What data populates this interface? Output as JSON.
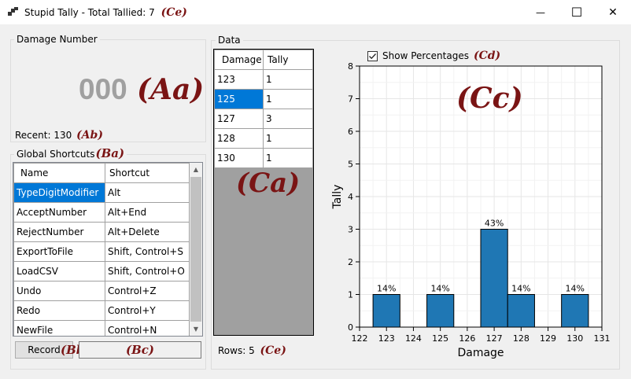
{
  "window": {
    "title": "Stupid Tally - Total Tallied: 7",
    "title_annotation": "(Ce)",
    "minimize_glyph": "—",
    "maximize_glyph": "☐",
    "close_glyph": "✕"
  },
  "damage_number": {
    "group_label": "Damage Number",
    "value": "000",
    "value_annotation": "(Aa)",
    "recent": "Recent: 130",
    "recent_annotation": "(Ab)"
  },
  "shortcuts": {
    "group_label": "Global Shortcuts",
    "group_annotation": "(Ba)",
    "columns": [
      "Name",
      "Shortcut"
    ],
    "rows": [
      {
        "name": "TypeDigitModifier",
        "shortcut": "Alt"
      },
      {
        "name": "AcceptNumber",
        "shortcut": "Alt+End"
      },
      {
        "name": "RejectNumber",
        "shortcut": "Alt+Delete"
      },
      {
        "name": "ExportToFile",
        "shortcut": "Shift, Control+S"
      },
      {
        "name": "LoadCSV",
        "shortcut": "Shift, Control+O"
      },
      {
        "name": "Undo",
        "shortcut": "Control+Z"
      },
      {
        "name": "Redo",
        "shortcut": "Control+Y"
      },
      {
        "name": "NewFile",
        "shortcut": "Control+N"
      }
    ],
    "scroll_up_glyph": "▲",
    "scroll_down_glyph": "▼",
    "record_label": "Record",
    "record_annotation": "(Bb)",
    "textbox_annotation": "(Bc)"
  },
  "data": {
    "group_label": "Data",
    "columns": [
      "Damage",
      "Tally"
    ],
    "rows": [
      {
        "damage": "123",
        "tally": "1"
      },
      {
        "damage": "125",
        "tally": "1"
      },
      {
        "damage": "127",
        "tally": "3"
      },
      {
        "damage": "128",
        "tally": "1"
      },
      {
        "damage": "130",
        "tally": "1"
      }
    ],
    "grid_annotation": "(Ca)",
    "rows_label": "Rows: 5",
    "rows_annotation": "(Ce)",
    "show_percentages_label": "Show Percentages",
    "show_percentages_checked": true,
    "show_percentages_annotation": "(Cd)",
    "chart_annotation": "(Cc)"
  },
  "chart_data": {
    "type": "bar",
    "x": [
      123,
      125,
      127,
      128,
      130
    ],
    "values": [
      1,
      1,
      3,
      1,
      1
    ],
    "bar_labels": [
      "14%",
      "14%",
      "43%",
      "14%",
      "14%"
    ],
    "xlabel": "Damage",
    "ylabel": "Tally",
    "xlim": [
      122,
      131
    ],
    "ylim": [
      0,
      8
    ],
    "x_ticks": [
      "122",
      "123",
      "124",
      "125",
      "126",
      "127",
      "128",
      "129",
      "130",
      "131"
    ],
    "y_ticks": [
      "0",
      "1",
      "2",
      "3",
      "4",
      "5",
      "6",
      "7",
      "8"
    ],
    "grid": true,
    "bar_color": "#1f77b4"
  }
}
